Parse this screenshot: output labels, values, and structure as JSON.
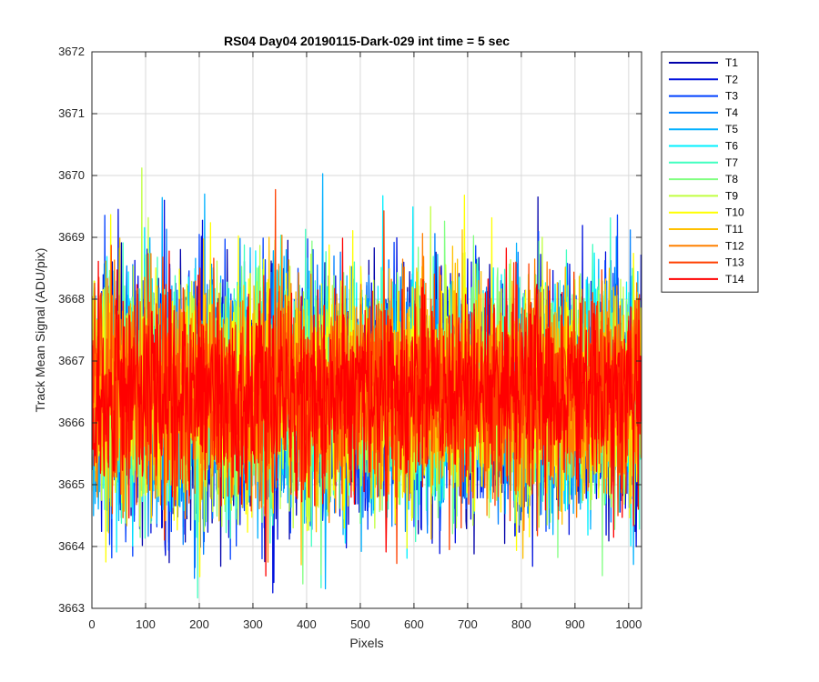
{
  "chart_data": {
    "type": "line",
    "title": "RS04 Day04 20190115-Dark-029 int time = 5 sec",
    "xlabel": "Pixels",
    "ylabel": "Track Mean Signal (ADU/pix)",
    "xlim": [
      0,
      1024
    ],
    "ylim": [
      3663,
      3672
    ],
    "xticks": [
      0,
      100,
      200,
      300,
      400,
      500,
      600,
      700,
      800,
      900,
      1000
    ],
    "yticks": [
      3663,
      3664,
      3665,
      3666,
      3667,
      3668,
      3669,
      3670,
      3671,
      3672
    ],
    "grid": true,
    "legend_position": "outside-top-right",
    "n_points": 1024,
    "noise_model": {
      "mean": 3666.5,
      "std": 0.9,
      "approximate_min": 3663.0,
      "approximate_max": 3671.1
    },
    "series": [
      {
        "name": "T1",
        "color": "#0000aa"
      },
      {
        "name": "T2",
        "color": "#0010dd"
      },
      {
        "name": "T3",
        "color": "#0040ff"
      },
      {
        "name": "T4",
        "color": "#0080ff"
      },
      {
        "name": "T5",
        "color": "#00b0ff"
      },
      {
        "name": "T6",
        "color": "#00f0ff"
      },
      {
        "name": "T7",
        "color": "#40ffc0"
      },
      {
        "name": "T8",
        "color": "#80ff80"
      },
      {
        "name": "T9",
        "color": "#c0ff40"
      },
      {
        "name": "T10",
        "color": "#ffff00"
      },
      {
        "name": "T11",
        "color": "#ffc000"
      },
      {
        "name": "T12",
        "color": "#ff8000"
      },
      {
        "name": "T13",
        "color": "#ff4000"
      },
      {
        "name": "T14",
        "color": "#ff0000"
      }
    ]
  }
}
